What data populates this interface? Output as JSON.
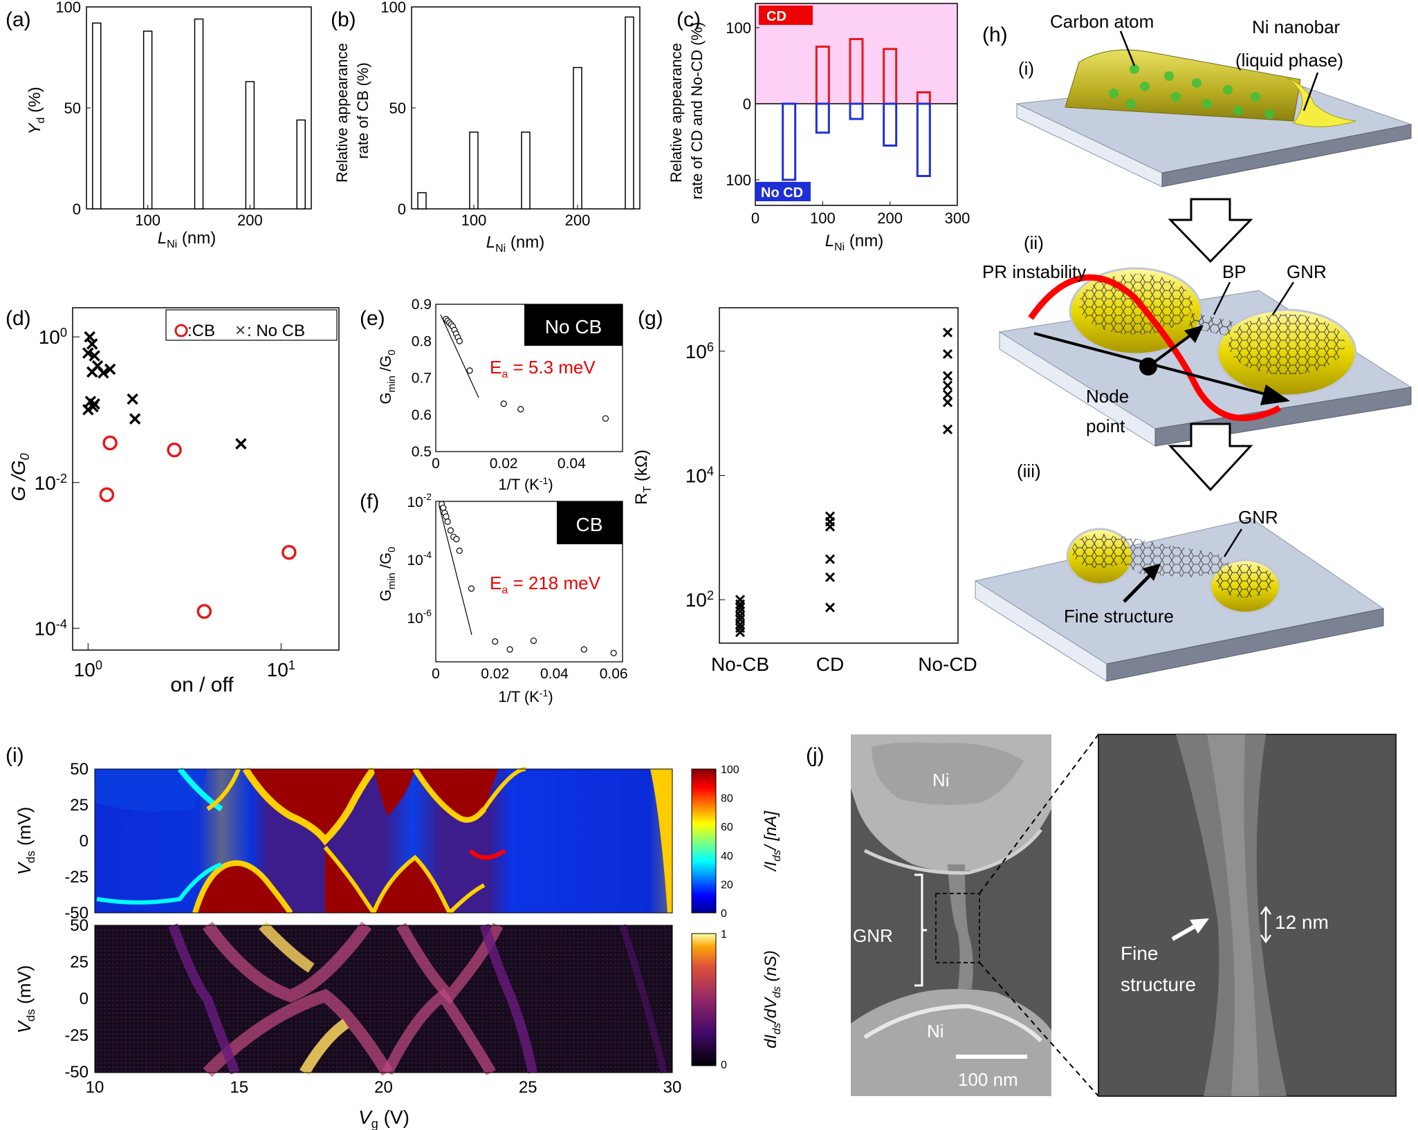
{
  "panel_labels": {
    "a": "(a)",
    "b": "(b)",
    "c": "(c)",
    "d": "(d)",
    "e": "(e)",
    "f": "(f)",
    "g": "(g)",
    "h": "(h)",
    "i": "(i)",
    "j": "(j)"
  },
  "chart_data": [
    {
      "id": "a",
      "type": "bar",
      "xlabel_main": "L",
      "xlabel_sub": "Ni",
      "xlabel_unit": " (nm)",
      "ylabel_main": "Y",
      "ylabel_sub": "d",
      "ylabel_unit": " (%)",
      "x": [
        50,
        100,
        150,
        200,
        250
      ],
      "values": [
        92,
        88,
        94,
        63,
        44
      ],
      "xlim": [
        40,
        260
      ],
      "ylim": [
        0,
        100
      ],
      "xticks": [
        100,
        200
      ],
      "yticks": [
        0,
        50,
        100
      ]
    },
    {
      "id": "b",
      "type": "bar",
      "xlabel_main": "L",
      "xlabel_sub": "Ni",
      "xlabel_unit": " (nm)",
      "ylabel_line1": "Relative appearance",
      "ylabel_line2": "rate of CB (%)",
      "x": [
        50,
        100,
        150,
        200,
        250
      ],
      "values": [
        8,
        38,
        38,
        70,
        95
      ],
      "xlim": [
        40,
        260
      ],
      "ylim": [
        0,
        100
      ],
      "xticks": [
        100,
        200
      ],
      "yticks": [
        0,
        50,
        100
      ]
    },
    {
      "id": "c",
      "type": "bar",
      "xlabel_main": "L",
      "xlabel_sub": "Ni",
      "xlabel_unit": " (nm)",
      "ylabel_line1": "Relative appearance",
      "ylabel_line2": "rate of CD and No-CD (%)",
      "cd_label": "CD",
      "nocd_label": "No CD",
      "x": [
        50,
        100,
        150,
        200,
        250
      ],
      "series": [
        {
          "name": "CD",
          "values": [
            0,
            75,
            85,
            72,
            15
          ],
          "color": "#e31a1c"
        },
        {
          "name": "No CD",
          "values": [
            100,
            38,
            20,
            55,
            95
          ],
          "color": "#1f2fd8"
        }
      ],
      "xlim": [
        0,
        300
      ],
      "ylim_label": [
        100,
        0,
        100
      ],
      "xticks": [
        0,
        100,
        200,
        300
      ],
      "yticks": [
        100,
        0,
        100
      ]
    },
    {
      "id": "d",
      "type": "scatter",
      "log_x": true,
      "log_y": true,
      "xlabel": "on / off",
      "ylabel_main": "G /G",
      "ylabel_sub": "0",
      "legend": [
        {
          "marker": "o",
          "label": ":CB",
          "color": "#e31a1c"
        },
        {
          "marker": "x",
          "label": ": No CB",
          "color": "#333333"
        }
      ],
      "series": [
        {
          "name": "CB",
          "color": "#e31a1c",
          "points": [
            [
              1.3,
              0.035
            ],
            [
              2.8,
              0.028
            ],
            [
              1.25,
              0.0068
            ],
            [
              11,
              0.0011
            ],
            [
              4,
              0.00017
            ]
          ]
        },
        {
          "name": "No CB",
          "color": "#000000",
          "points": [
            [
              1.02,
              1.0
            ],
            [
              1.05,
              0.8
            ],
            [
              1.0,
              0.6
            ],
            [
              1.08,
              0.55
            ],
            [
              1.12,
              0.4
            ],
            [
              1.05,
              0.33
            ],
            [
              1.2,
              0.32
            ],
            [
              1.3,
              0.36
            ],
            [
              1.03,
              0.13
            ],
            [
              1.06,
              0.11
            ],
            [
              1.0,
              0.1
            ],
            [
              1.08,
              0.12
            ],
            [
              1.7,
              0.14
            ],
            [
              1.75,
              0.075
            ],
            [
              6.2,
              0.034
            ]
          ]
        }
      ],
      "xticks_mant": [
        "10",
        "10"
      ],
      "xticks_exp": [
        "0",
        "1"
      ],
      "yticks_mant": [
        "10",
        "10",
        "10"
      ],
      "yticks_exp": [
        "0",
        "-2",
        "-4"
      ]
    },
    {
      "id": "e",
      "type": "scatter",
      "xlabel": "1/T (K",
      "xlabel_sup": "-1",
      "xlabel_end": ")",
      "ylabel": "G",
      "ylabel_sub": "min",
      "ylabel_rest": " /G",
      "ylabel_sub2": "0",
      "box_label": "No CB",
      "ea_label": "E",
      "ea_sub": "a",
      "ea_value": " = 5.3 meV",
      "x": [
        0.003,
        0.0035,
        0.004,
        0.0045,
        0.005,
        0.0055,
        0.006,
        0.0065,
        0.007,
        0.01,
        0.02,
        0.025,
        0.05
      ],
      "y": [
        0.86,
        0.855,
        0.85,
        0.845,
        0.84,
        0.83,
        0.82,
        0.81,
        0.8,
        0.72,
        0.63,
        0.615,
        0.59
      ],
      "xlim": [
        0,
        0.055
      ],
      "ylim": [
        0.5,
        0.9
      ],
      "xticks": [
        "0",
        "0.02",
        "0.04"
      ],
      "yticks": [
        "0.5",
        "0.6",
        "0.7",
        "0.8",
        "0.9"
      ]
    },
    {
      "id": "f",
      "type": "scatter",
      "log_y": true,
      "xlabel": "1/T (K",
      "xlabel_sup": "-1",
      "xlabel_end": ")",
      "ylabel": "G",
      "ylabel_sub": "min",
      "ylabel_rest": " /G",
      "ylabel_sub2": "0",
      "box_label": "CB",
      "ea_label": "E",
      "ea_sub": "a",
      "ea_value": " = 218 meV",
      "x": [
        0.002,
        0.0025,
        0.003,
        0.0035,
        0.004,
        0.005,
        0.006,
        0.007,
        0.008,
        0.012,
        0.02,
        0.025,
        0.033,
        0.05,
        0.06
      ],
      "y": [
        0.008,
        0.006,
        0.004,
        0.003,
        0.002,
        0.001,
        0.0006,
        0.0005,
        0.0002,
        1e-05,
        1.5e-07,
        8e-08,
        1.6e-07,
        8e-08,
        6e-08
      ],
      "xlim": [
        0,
        0.063
      ],
      "ylim": [
        3e-08,
        0.01
      ],
      "xticks": [
        "0",
        "0.02",
        "0.04",
        "0.06"
      ],
      "yticks_mant": [
        "10",
        "10",
        "10"
      ],
      "yticks_exp": [
        "-2",
        "-4",
        "-6"
      ]
    },
    {
      "id": "g",
      "type": "scatter",
      "log_y": true,
      "ylabel": "R",
      "ylabel_sub": "T",
      "ylabel_unit": " (kΩ)",
      "categories": [
        "No-CB",
        "CD",
        "No-CD"
      ],
      "series": [
        {
          "name": "",
          "color": "#000000",
          "points": [
            [
              0,
              100
            ],
            [
              0,
              85
            ],
            [
              0,
              75
            ],
            [
              0,
              65
            ],
            [
              0,
              55
            ],
            [
              0,
              48
            ],
            [
              0,
              40
            ],
            [
              0,
              35
            ],
            [
              0,
              30
            ],
            [
              1,
              2200
            ],
            [
              1,
              1800
            ],
            [
              1,
              1500
            ],
            [
              1,
              450
            ],
            [
              1,
              230
            ],
            [
              1,
              75
            ],
            [
              2,
              2000000
            ],
            [
              2,
              900000
            ],
            [
              2,
              400000
            ],
            [
              2,
              280000
            ],
            [
              2,
              200000
            ],
            [
              2,
              150000
            ],
            [
              2,
              55000
            ]
          ]
        }
      ],
      "ylim": [
        20,
        5000000
      ],
      "yticks_mant": [
        "10",
        "10",
        "10"
      ],
      "yticks_exp": [
        "2",
        "4",
        "6"
      ]
    },
    {
      "id": "i",
      "type": "heatmap",
      "xlabel": "V",
      "xlabel_sub": "g",
      "xlabel_unit": " (V)",
      "ylabel": "V",
      "ylabel_sub": "ds",
      "ylabel_unit": " (mV)",
      "xticks": [
        "10",
        "15",
        "20",
        "25",
        "30"
      ],
      "yticks": [
        "50",
        "25",
        "0",
        "-25",
        "-50"
      ],
      "top_colorbar_ticks": [
        "100",
        "80",
        "60",
        "40",
        "20",
        "0"
      ],
      "top_colorbar_label": "/I",
      "top_colorbar_sub": "ds",
      "top_colorbar_unit": "/ [nA]",
      "bottom_colorbar_ticks": [
        "1",
        "0"
      ],
      "bottom_colorbar_label": "dI",
      "bottom_colorbar_sub": "ds",
      "bottom_colorbar_mid": "/dV",
      "bottom_colorbar_sub2": "ds",
      "bottom_colorbar_unit": " (nS)"
    }
  ],
  "schematic_h": {
    "step_i": "(i)",
    "step_ii": "(ii)",
    "step_iii": "(iii)",
    "carbon_atom": "Carbon atom",
    "ni_nanobar_line1": "Ni nanobar",
    "ni_nanobar_line2": "(liquid phase)",
    "pr_instability": "PR instability",
    "bp": "BP",
    "gnr": "GNR",
    "node_line1": "Node",
    "node_line2": "point",
    "gnr2": "GNR",
    "fine_structure": "Fine structure"
  },
  "sem_j": {
    "ni_top": "Ni",
    "ni_bottom": "Ni",
    "gnr": "GNR",
    "scale_bar": "100 nm",
    "width_label": "12 nm",
    "fine_line1": "Fine",
    "fine_line2": "structure"
  }
}
